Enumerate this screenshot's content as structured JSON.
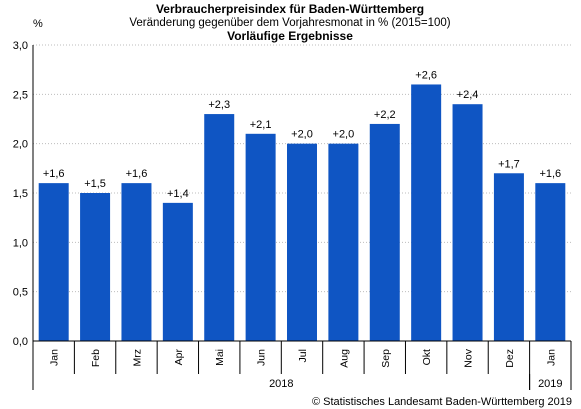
{
  "chart_data": {
    "type": "bar",
    "title": "Verbraucherpreisindex für Baden-Württemberg",
    "subtitle": "Veränderung gegenüber dem Vorjahresmonat in % (2015=100)",
    "subtitle2": "Vorläufige Ergebnisse",
    "ylabel": "%",
    "ylim": [
      0,
      3.0
    ],
    "yticks": [
      0,
      0.5,
      1.0,
      1.5,
      2.0,
      2.5,
      3.0
    ],
    "ytick_labels": [
      "0,0",
      "0,5",
      "1,0",
      "1,5",
      "2,0",
      "2,5",
      "3,0"
    ],
    "grid": true,
    "categories": [
      "Jan",
      "Feb",
      "Mrz",
      "Apr",
      "Mai",
      "Jun",
      "Jul",
      "Aug",
      "Sep",
      "Okt",
      "Nov",
      "Dez",
      "Jan"
    ],
    "values": [
      1.6,
      1.5,
      1.6,
      1.4,
      2.3,
      2.1,
      2.0,
      2.0,
      2.2,
      2.6,
      2.4,
      1.7,
      1.6
    ],
    "value_labels": [
      "+1,6",
      "+1,5",
      "+1,6",
      "+1,4",
      "+2,3",
      "+2,1",
      "+2,0",
      "+2,0",
      "+2,2",
      "+2,6",
      "+2,4",
      "+1,7",
      "+1,6"
    ],
    "year_groups": [
      {
        "label": "2018",
        "start": 0,
        "end": 11
      },
      {
        "label": "2019",
        "start": 12,
        "end": 12
      }
    ],
    "bar_color": "#0f55c3",
    "source": "© Statistisches Landesamt Baden-Württemberg 2019"
  }
}
